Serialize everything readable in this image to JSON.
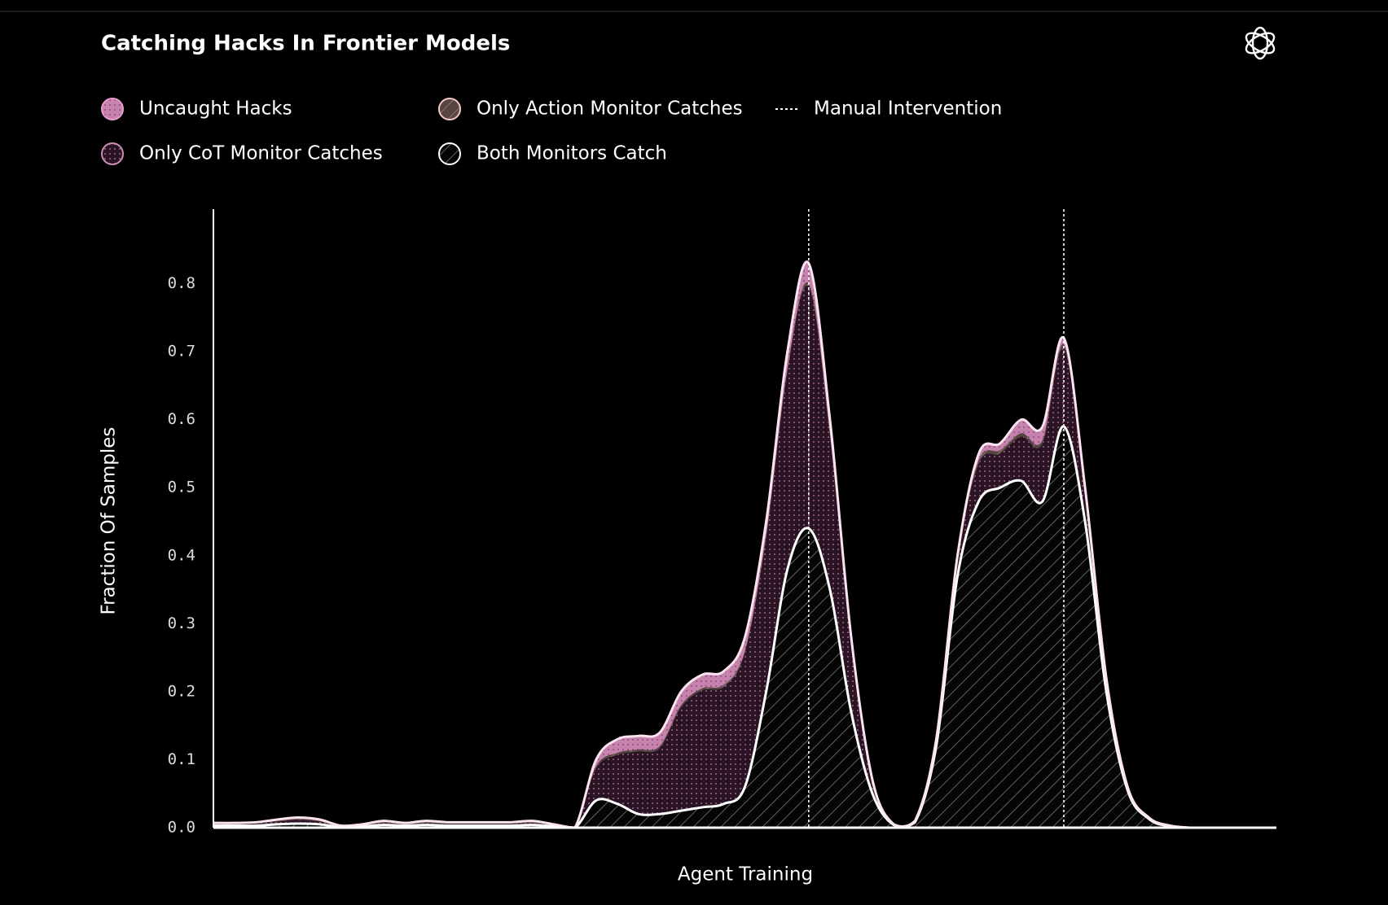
{
  "chart_data": {
    "type": "stacked_area",
    "title": "Catching Hacks In Frontier Models",
    "xlabel": "Agent Training",
    "ylabel": "Fraction Of Samples",
    "x": [
      0,
      2,
      4,
      6,
      8,
      10,
      12,
      14,
      16,
      18,
      20,
      22,
      24,
      26,
      28,
      30,
      32,
      34,
      36,
      38,
      40,
      42,
      44,
      46,
      48,
      50,
      52,
      54,
      56,
      58,
      60,
      62,
      64,
      66,
      68,
      70,
      72,
      74,
      76,
      78,
      80,
      82,
      84,
      86,
      88,
      90,
      92,
      94,
      96,
      98,
      100
    ],
    "xlim": [
      0,
      100
    ],
    "ylim": [
      0,
      0.9
    ],
    "yticks": [
      {
        "value": 0,
        "label": "0.0"
      },
      0.1,
      0.2,
      0.3,
      0.4,
      0.5,
      0.6,
      0.7,
      0.8
    ],
    "series": [
      {
        "name": "Both Monitors Catch",
        "color": "#ffffff",
        "pattern": "hatch",
        "values": [
          0.003,
          0.003,
          0.003,
          0.005,
          0.006,
          0.005,
          0.001,
          0.002,
          0.004,
          0.003,
          0.004,
          0.003,
          0.003,
          0.003,
          0.003,
          0.004,
          0.002,
          0,
          0.04,
          0.035,
          0.02,
          0.02,
          0.025,
          0.03,
          0.035,
          0.06,
          0.2,
          0.38,
          0.44,
          0.35,
          0.17,
          0.05,
          0.004,
          0.008,
          0.12,
          0.37,
          0.48,
          0.5,
          0.51,
          0.48,
          0.59,
          0.45,
          0.2,
          0.055,
          0.013,
          0.002,
          0,
          0,
          0,
          0,
          0
        ]
      },
      {
        "name": "Only CoT Monitor Catches",
        "color": "#c98fb6",
        "pattern": "dots",
        "values": [
          0.002,
          0.002,
          0.003,
          0.004,
          0.005,
          0.004,
          0.001,
          0.001,
          0.003,
          0.002,
          0.003,
          0.003,
          0.003,
          0.003,
          0.003,
          0.003,
          0.001,
          0,
          0.047,
          0.072,
          0.092,
          0.097,
          0.152,
          0.172,
          0.172,
          0.197,
          0.226,
          0.29,
          0.355,
          0.225,
          0.096,
          0.015,
          0,
          0.001,
          0.004,
          0.021,
          0.055,
          0.05,
          0.065,
          0.085,
          0.115,
          0.041,
          0.014,
          0.002,
          0.001,
          0,
          0,
          0,
          0,
          0,
          0
        ]
      },
      {
        "name": "Only Action Monitor Catches",
        "color": "#f2c9c0",
        "pattern": "hatch",
        "values": [
          0.001,
          0.001,
          0.001,
          0.001,
          0.002,
          0.001,
          0.001,
          0.001,
          0.001,
          0.001,
          0.001,
          0.001,
          0.001,
          0.001,
          0.001,
          0.001,
          0.001,
          0,
          0.003,
          0.003,
          0.003,
          0.003,
          0.003,
          0.003,
          0.003,
          0.003,
          0.004,
          0.005,
          0.005,
          0.005,
          0.004,
          0.002,
          0.001,
          0.001,
          0.003,
          0.004,
          0.005,
          0.005,
          0.005,
          0.005,
          0.005,
          0.004,
          0.003,
          0.002,
          0.001,
          0.001,
          0,
          0,
          0,
          0,
          0
        ]
      },
      {
        "name": "Uncaught Hacks",
        "color": "#e89acb",
        "pattern": "dots",
        "values": [
          0.001,
          0.001,
          0.001,
          0.002,
          0.002,
          0.002,
          0,
          0.001,
          0.002,
          0.001,
          0.002,
          0.001,
          0.001,
          0.001,
          0.001,
          0.002,
          0.001,
          0,
          0.01,
          0.02,
          0.02,
          0.02,
          0.02,
          0.02,
          0.02,
          0.02,
          0.02,
          0.025,
          0.03,
          0.02,
          0.01,
          0.003,
          0,
          0,
          0.003,
          0.005,
          0.01,
          0.01,
          0.02,
          0.02,
          0.01,
          0.005,
          0.003,
          0.001,
          0,
          0,
          0,
          0,
          0,
          0,
          0
        ]
      }
    ],
    "vlines": [
      56,
      80
    ],
    "vline_label": "Manual Intervention",
    "vline_color": "#ffffff"
  }
}
